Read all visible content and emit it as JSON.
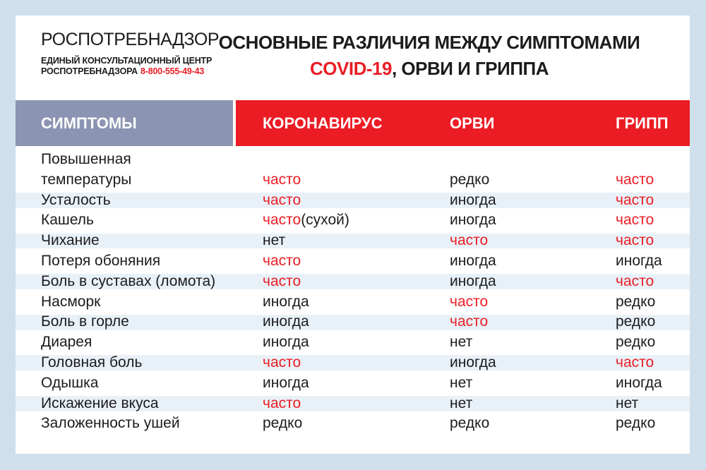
{
  "colors": {
    "page_bg": "#cfe0ec",
    "card_bg": "#ffffff",
    "symptoms_header_bg": "#8b94b2",
    "diseases_header_bg": "#ec1c24",
    "stripe_bg": "#e9f1f8",
    "accent_red": "#ea1e25",
    "text_dark": "#1c1c1e"
  },
  "logo": {
    "title": "РОСПОТРЕБНАДЗОР",
    "subtitle_line1": "ЕДИНЫЙ КОНСУЛЬТАЦИОННЫЙ ЦЕНТР",
    "subtitle_line2": "РОСПОТРЕБНАДЗОРА",
    "phone": "8-800-555-49-43"
  },
  "title": {
    "line1": "ОСНОВНЫЕ РАЗЛИЧИЯ МЕЖДУ СИМПТОМАМИ",
    "line2_red": "COVID-19",
    "line2_rest": ", ОРВИ И ГРИППА"
  },
  "table": {
    "symptom_header": "СИМПТОМЫ",
    "columns": [
      "КОРОНАВИРУС",
      "ОРВИ",
      "ГРИПП"
    ],
    "rows": [
      {
        "symptom_lines": [
          "Повышенная",
          "температуры"
        ],
        "striped": false,
        "cells": [
          {
            "text": "часто",
            "red": true
          },
          {
            "text": "редко",
            "red": false
          },
          {
            "text": "часто",
            "red": true
          }
        ]
      },
      {
        "symptom_lines": [
          "Усталость"
        ],
        "striped": true,
        "cells": [
          {
            "text": "часто",
            "red": true
          },
          {
            "text": "иногда",
            "red": false
          },
          {
            "text": "часто",
            "red": true
          }
        ]
      },
      {
        "symptom_lines": [
          "Кашель"
        ],
        "striped": false,
        "cells": [
          {
            "text": "часто",
            "red": true,
            "suffix": "(сухой)"
          },
          {
            "text": "иногда",
            "red": false
          },
          {
            "text": "часто",
            "red": true
          }
        ]
      },
      {
        "symptom_lines": [
          "Чихание"
        ],
        "striped": true,
        "cells": [
          {
            "text": "нет",
            "red": false
          },
          {
            "text": "часто",
            "red": true
          },
          {
            "text": "часто",
            "red": true
          }
        ]
      },
      {
        "symptom_lines": [
          "Потеря обоняния"
        ],
        "striped": false,
        "cells": [
          {
            "text": "часто",
            "red": true
          },
          {
            "text": "иногда",
            "red": false
          },
          {
            "text": "иногда",
            "red": false
          }
        ]
      },
      {
        "symptom_lines": [
          "Боль в суставах (ломота)"
        ],
        "striped": true,
        "cells": [
          {
            "text": "часто",
            "red": true
          },
          {
            "text": "иногда",
            "red": false
          },
          {
            "text": "часто",
            "red": true
          }
        ]
      },
      {
        "symptom_lines": [
          "Насморк"
        ],
        "striped": false,
        "cells": [
          {
            "text": "иногда",
            "red": false
          },
          {
            "text": "часто",
            "red": true
          },
          {
            "text": "редко",
            "red": false
          }
        ]
      },
      {
        "symptom_lines": [
          "Боль в горле"
        ],
        "striped": true,
        "cells": [
          {
            "text": "иногда",
            "red": false
          },
          {
            "text": "часто",
            "red": true
          },
          {
            "text": "редко",
            "red": false
          }
        ]
      },
      {
        "symptom_lines": [
          "Диарея"
        ],
        "striped": false,
        "cells": [
          {
            "text": "иногда",
            "red": false
          },
          {
            "text": "нет",
            "red": false
          },
          {
            "text": "редко",
            "red": false
          }
        ]
      },
      {
        "symptom_lines": [
          "Головная боль"
        ],
        "striped": true,
        "cells": [
          {
            "text": "часто",
            "red": true
          },
          {
            "text": "иногда",
            "red": false
          },
          {
            "text": "часто",
            "red": true
          }
        ]
      },
      {
        "symptom_lines": [
          "Одышка"
        ],
        "striped": false,
        "cells": [
          {
            "text": "иногда",
            "red": false
          },
          {
            "text": "нет",
            "red": false
          },
          {
            "text": "иногда",
            "red": false
          }
        ]
      },
      {
        "symptom_lines": [
          "Искажение вкуса"
        ],
        "striped": true,
        "cells": [
          {
            "text": "часто",
            "red": true
          },
          {
            "text": "нет",
            "red": false
          },
          {
            "text": "нет",
            "red": false
          }
        ]
      },
      {
        "symptom_lines": [
          "Заложенность ушей"
        ],
        "striped": false,
        "cells": [
          {
            "text": "редко",
            "red": false
          },
          {
            "text": "редко",
            "red": false
          },
          {
            "text": "редко",
            "red": false
          }
        ]
      }
    ]
  }
}
